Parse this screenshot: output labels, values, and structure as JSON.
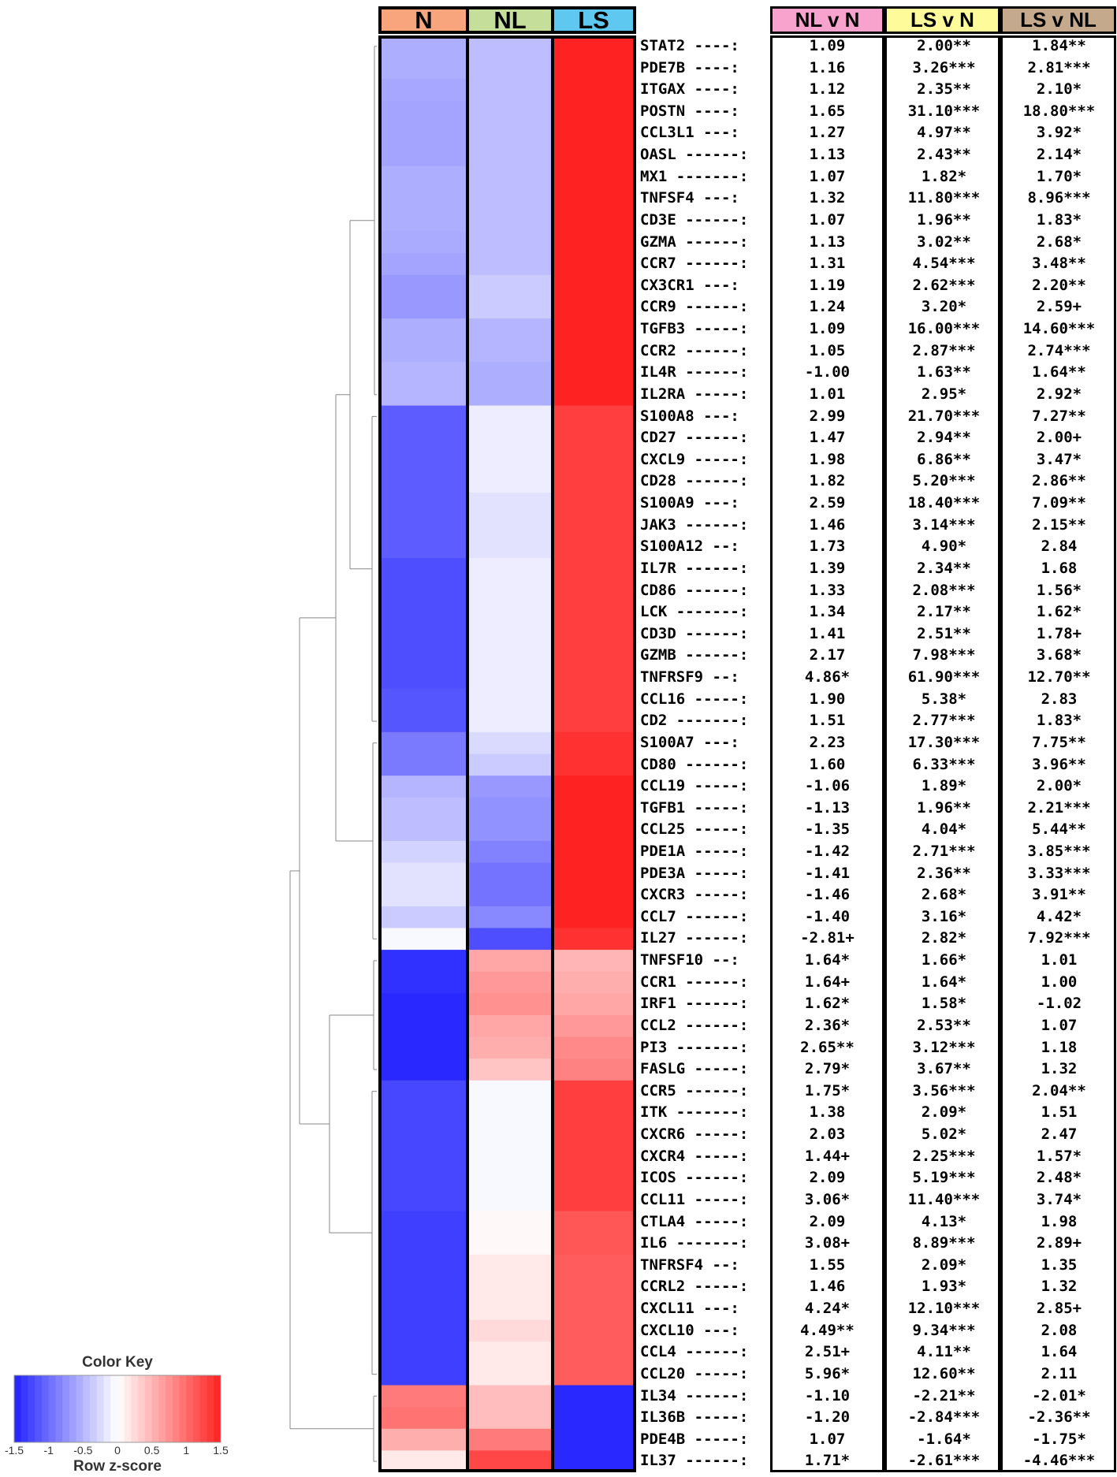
{
  "chart_data": {
    "type": "heatmap",
    "title": "",
    "columns": [
      "N",
      "NL",
      "LS"
    ],
    "column_colors": [
      "#f8a47c",
      "#c5df9a",
      "#5fc8f0"
    ],
    "comparison_headers": [
      "NL v N",
      "LS v N",
      "LS v NL"
    ],
    "comparison_colors": [
      "#f7a3cd",
      "#fefc9a",
      "#c4a98c"
    ],
    "value_range": [
      -1.5,
      1.5
    ],
    "colormap": {
      "low": "#2222ff",
      "mid": "#ffffff",
      "high": "#ff2222"
    },
    "color_key": {
      "title": "Color Key",
      "label": "Row z-score",
      "ticks": [
        "-1.5",
        "-1",
        "-0.5",
        "0",
        "0.5",
        "1",
        "1.5"
      ]
    },
    "rows": [
      {
        "gene": "STAT2 ----:",
        "z": [
          -0.55,
          -0.45,
          1.5
        ],
        "nl_v_n": "1.09",
        "ls_v_n": "2.00**",
        "ls_v_nl": "1.84**"
      },
      {
        "gene": "PDE7B ----:",
        "z": [
          -0.55,
          -0.45,
          1.5
        ],
        "nl_v_n": "1.16",
        "ls_v_n": "3.26***",
        "ls_v_nl": "2.81***"
      },
      {
        "gene": "ITGAX ----:",
        "z": [
          -0.6,
          -0.45,
          1.5
        ],
        "nl_v_n": "1.12",
        "ls_v_n": "2.35**",
        "ls_v_nl": "2.10*"
      },
      {
        "gene": "POSTN ----:",
        "z": [
          -0.62,
          -0.45,
          1.5
        ],
        "nl_v_n": "1.65",
        "ls_v_n": "31.10***",
        "ls_v_nl": "18.80***"
      },
      {
        "gene": "CCL3L1 ---:",
        "z": [
          -0.62,
          -0.45,
          1.5
        ],
        "nl_v_n": "1.27",
        "ls_v_n": "4.97**",
        "ls_v_nl": "3.92*"
      },
      {
        "gene": "OASL ------:",
        "z": [
          -0.62,
          -0.45,
          1.5
        ],
        "nl_v_n": "1.13",
        "ls_v_n": "2.43**",
        "ls_v_nl": "2.14*"
      },
      {
        "gene": "MX1 -------:",
        "z": [
          -0.55,
          -0.45,
          1.5
        ],
        "nl_v_n": "1.07",
        "ls_v_n": "1.82*",
        "ls_v_nl": "1.70*"
      },
      {
        "gene": "TNFSF4 ---:",
        "z": [
          -0.55,
          -0.45,
          1.5
        ],
        "nl_v_n": "1.32",
        "ls_v_n": "11.80***",
        "ls_v_nl": "8.96***"
      },
      {
        "gene": "CD3E ------:",
        "z": [
          -0.55,
          -0.45,
          1.5
        ],
        "nl_v_n": "1.07",
        "ls_v_n": "1.96**",
        "ls_v_nl": "1.83*"
      },
      {
        "gene": "GZMA ------:",
        "z": [
          -0.58,
          -0.45,
          1.5
        ],
        "nl_v_n": "1.13",
        "ls_v_n": "3.02**",
        "ls_v_nl": "2.68*"
      },
      {
        "gene": "CCR7 ------:",
        "z": [
          -0.62,
          -0.45,
          1.5
        ],
        "nl_v_n": "1.31",
        "ls_v_n": "4.54***",
        "ls_v_nl": "3.48**"
      },
      {
        "gene": "CX3CR1 ---:",
        "z": [
          -0.7,
          -0.35,
          1.5
        ],
        "nl_v_n": "1.19",
        "ls_v_n": "2.62***",
        "ls_v_nl": "2.20**"
      },
      {
        "gene": "CCR9 ------:",
        "z": [
          -0.7,
          -0.35,
          1.5
        ],
        "nl_v_n": "1.24",
        "ls_v_n": "3.20*",
        "ls_v_nl": "2.59+"
      },
      {
        "gene": "TGFB3 -----:",
        "z": [
          -0.55,
          -0.5,
          1.5
        ],
        "nl_v_n": "1.09",
        "ls_v_n": "16.00***",
        "ls_v_nl": "14.60***"
      },
      {
        "gene": "CCR2 ------:",
        "z": [
          -0.55,
          -0.5,
          1.5
        ],
        "nl_v_n": "1.05",
        "ls_v_n": "2.87***",
        "ls_v_nl": "2.74***"
      },
      {
        "gene": "IL4R ------:",
        "z": [
          -0.5,
          -0.55,
          1.5
        ],
        "nl_v_n": "-1.00",
        "ls_v_n": "1.63**",
        "ls_v_nl": "1.64**"
      },
      {
        "gene": "IL2RA -----:",
        "z": [
          -0.5,
          -0.55,
          1.5
        ],
        "nl_v_n": "1.01",
        "ls_v_n": "2.95*",
        "ls_v_nl": "2.92*"
      },
      {
        "gene": "S100A8 ---:",
        "z": [
          -1.1,
          -0.12,
          1.3
        ],
        "nl_v_n": "2.99",
        "ls_v_n": "21.70***",
        "ls_v_nl": "7.27**"
      },
      {
        "gene": "CD27 ------:",
        "z": [
          -1.1,
          -0.12,
          1.3
        ],
        "nl_v_n": "1.47",
        "ls_v_n": "2.94**",
        "ls_v_nl": "2.00+"
      },
      {
        "gene": "CXCL9 -----:",
        "z": [
          -1.1,
          -0.12,
          1.3
        ],
        "nl_v_n": "1.98",
        "ls_v_n": "6.86**",
        "ls_v_nl": "3.47*"
      },
      {
        "gene": "CD28 ------:",
        "z": [
          -1.1,
          -0.12,
          1.3
        ],
        "nl_v_n": "1.82",
        "ls_v_n": "5.20***",
        "ls_v_nl": "2.86**"
      },
      {
        "gene": "S100A9 ---:",
        "z": [
          -1.1,
          -0.2,
          1.3
        ],
        "nl_v_n": "2.59",
        "ls_v_n": "18.40***",
        "ls_v_nl": "7.09**"
      },
      {
        "gene": "JAK3 ------:",
        "z": [
          -1.1,
          -0.2,
          1.3
        ],
        "nl_v_n": "1.46",
        "ls_v_n": "3.14***",
        "ls_v_nl": "2.15**"
      },
      {
        "gene": "S100A12 --:",
        "z": [
          -1.1,
          -0.2,
          1.3
        ],
        "nl_v_n": "1.73",
        "ls_v_n": "4.90*",
        "ls_v_nl": "2.84"
      },
      {
        "gene": "IL7R ------:",
        "z": [
          -1.2,
          -0.12,
          1.3
        ],
        "nl_v_n": "1.39",
        "ls_v_n": "2.34**",
        "ls_v_nl": "1.68"
      },
      {
        "gene": "CD86 ------:",
        "z": [
          -1.2,
          -0.12,
          1.3
        ],
        "nl_v_n": "1.33",
        "ls_v_n": "2.08***",
        "ls_v_nl": "1.56*"
      },
      {
        "gene": "LCK -------:",
        "z": [
          -1.2,
          -0.12,
          1.3
        ],
        "nl_v_n": "1.34",
        "ls_v_n": "2.17**",
        "ls_v_nl": "1.62*"
      },
      {
        "gene": "CD3D ------:",
        "z": [
          -1.2,
          -0.12,
          1.3
        ],
        "nl_v_n": "1.41",
        "ls_v_n": "2.51**",
        "ls_v_nl": "1.78+"
      },
      {
        "gene": "GZMB ------:",
        "z": [
          -1.2,
          -0.12,
          1.3
        ],
        "nl_v_n": "2.17",
        "ls_v_n": "7.98***",
        "ls_v_nl": "3.68*"
      },
      {
        "gene": "TNFRSF9 --:",
        "z": [
          -1.2,
          -0.12,
          1.3
        ],
        "nl_v_n": "4.86*",
        "ls_v_n": "61.90***",
        "ls_v_nl": "12.70**"
      },
      {
        "gene": "CCL16 -----:",
        "z": [
          -1.15,
          -0.12,
          1.3
        ],
        "nl_v_n": "1.90",
        "ls_v_n": "5.38*",
        "ls_v_nl": "2.83"
      },
      {
        "gene": "CD2 -------:",
        "z": [
          -1.15,
          -0.12,
          1.3
        ],
        "nl_v_n": "1.51",
        "ls_v_n": "2.77***",
        "ls_v_nl": "1.83*"
      },
      {
        "gene": "S100A7 ---:",
        "z": [
          -0.9,
          -0.25,
          1.4
        ],
        "nl_v_n": "2.23",
        "ls_v_n": "17.30***",
        "ls_v_nl": "7.75**"
      },
      {
        "gene": "CD80 ------:",
        "z": [
          -0.9,
          -0.35,
          1.4
        ],
        "nl_v_n": "1.60",
        "ls_v_n": "6.33***",
        "ls_v_nl": "3.96**"
      },
      {
        "gene": "CCL19 -----:",
        "z": [
          -0.5,
          -0.7,
          1.5
        ],
        "nl_v_n": "-1.06",
        "ls_v_n": "1.89*",
        "ls_v_nl": "2.00*"
      },
      {
        "gene": "TGFB1 -----:",
        "z": [
          -0.45,
          -0.75,
          1.5
        ],
        "nl_v_n": "-1.13",
        "ls_v_n": "1.96**",
        "ls_v_nl": "2.21***"
      },
      {
        "gene": "CCL25 -----:",
        "z": [
          -0.45,
          -0.75,
          1.5
        ],
        "nl_v_n": "-1.35",
        "ls_v_n": "4.04*",
        "ls_v_nl": "5.44**"
      },
      {
        "gene": "PDE1A -----:",
        "z": [
          -0.3,
          -0.85,
          1.5
        ],
        "nl_v_n": "-1.42",
        "ls_v_n": "2.71***",
        "ls_v_nl": "3.85***"
      },
      {
        "gene": "PDE3A -----:",
        "z": [
          -0.2,
          -0.95,
          1.5
        ],
        "nl_v_n": "-1.41",
        "ls_v_n": "2.36**",
        "ls_v_nl": "3.33***"
      },
      {
        "gene": "CXCR3 -----:",
        "z": [
          -0.2,
          -0.95,
          1.5
        ],
        "nl_v_n": "-1.46",
        "ls_v_n": "2.68*",
        "ls_v_nl": "3.91**"
      },
      {
        "gene": "CCL7 ------:",
        "z": [
          -0.35,
          -0.8,
          1.5
        ],
        "nl_v_n": "-1.40",
        "ls_v_n": "3.16*",
        "ls_v_nl": "4.42*"
      },
      {
        "gene": "IL27 ------:",
        "z": [
          -0.05,
          -1.2,
          1.4
        ],
        "nl_v_n": "-2.81+",
        "ls_v_n": "2.82*",
        "ls_v_nl": "7.92***"
      },
      {
        "gene": "TNFSF10 --:",
        "z": [
          -1.4,
          0.6,
          0.5
        ],
        "nl_v_n": "1.64*",
        "ls_v_n": "1.66*",
        "ls_v_nl": "1.01"
      },
      {
        "gene": "CCR1 ------:",
        "z": [
          -1.4,
          0.7,
          0.55
        ],
        "nl_v_n": "1.64+",
        "ls_v_n": "1.64*",
        "ls_v_nl": "1.00"
      },
      {
        "gene": "IRF1 ------:",
        "z": [
          -1.45,
          0.75,
          0.6
        ],
        "nl_v_n": "1.62*",
        "ls_v_n": "1.58*",
        "ls_v_nl": "-1.02"
      },
      {
        "gene": "CCL2 ------:",
        "z": [
          -1.45,
          0.6,
          0.7
        ],
        "nl_v_n": "2.36*",
        "ls_v_n": "2.53**",
        "ls_v_nl": "1.07"
      },
      {
        "gene": "PI3 -------:",
        "z": [
          -1.45,
          0.55,
          0.8
        ],
        "nl_v_n": "2.65**",
        "ls_v_n": "3.12***",
        "ls_v_nl": "1.18"
      },
      {
        "gene": "FASLG -----:",
        "z": [
          -1.45,
          0.4,
          0.85
        ],
        "nl_v_n": "2.79*",
        "ls_v_n": "3.67**",
        "ls_v_nl": "1.32"
      },
      {
        "gene": "CCR5 ------:",
        "z": [
          -1.25,
          -0.05,
          1.3
        ],
        "nl_v_n": "1.75*",
        "ls_v_n": "3.56***",
        "ls_v_nl": "2.04**"
      },
      {
        "gene": "ITK -------:",
        "z": [
          -1.25,
          -0.05,
          1.3
        ],
        "nl_v_n": "1.38",
        "ls_v_n": "2.09*",
        "ls_v_nl": "1.51"
      },
      {
        "gene": "CXCR6 -----:",
        "z": [
          -1.25,
          -0.05,
          1.3
        ],
        "nl_v_n": "2.03",
        "ls_v_n": "5.02*",
        "ls_v_nl": "2.47"
      },
      {
        "gene": "CXCR4 -----:",
        "z": [
          -1.25,
          -0.05,
          1.3
        ],
        "nl_v_n": "1.44+",
        "ls_v_n": "2.25***",
        "ls_v_nl": "1.57*"
      },
      {
        "gene": "ICOS ------:",
        "z": [
          -1.25,
          -0.05,
          1.3
        ],
        "nl_v_n": "2.09",
        "ls_v_n": "5.19***",
        "ls_v_nl": "2.48*"
      },
      {
        "gene": "CCL11 -----:",
        "z": [
          -1.25,
          -0.05,
          1.3
        ],
        "nl_v_n": "3.06*",
        "ls_v_n": "11.40***",
        "ls_v_nl": "3.74*"
      },
      {
        "gene": "CTLA4 -----:",
        "z": [
          -1.3,
          0.05,
          1.15
        ],
        "nl_v_n": "2.09",
        "ls_v_n": "4.13*",
        "ls_v_nl": "1.98"
      },
      {
        "gene": "IL6 -------:",
        "z": [
          -1.3,
          0.05,
          1.15
        ],
        "nl_v_n": "3.08+",
        "ls_v_n": "8.89***",
        "ls_v_nl": "2.89+"
      },
      {
        "gene": "TNFRSF4 --:",
        "z": [
          -1.3,
          0.15,
          1.1
        ],
        "nl_v_n": "1.55",
        "ls_v_n": "2.09*",
        "ls_v_nl": "1.35"
      },
      {
        "gene": "CCRL2 -----:",
        "z": [
          -1.3,
          0.15,
          1.1
        ],
        "nl_v_n": "1.46",
        "ls_v_n": "1.93*",
        "ls_v_nl": "1.32"
      },
      {
        "gene": "CXCL11 ---:",
        "z": [
          -1.3,
          0.15,
          1.1
        ],
        "nl_v_n": "4.24*",
        "ls_v_n": "12.10***",
        "ls_v_nl": "2.85+"
      },
      {
        "gene": "CXCL10 ---:",
        "z": [
          -1.3,
          0.25,
          1.1
        ],
        "nl_v_n": "4.49**",
        "ls_v_n": "9.34***",
        "ls_v_nl": "2.08"
      },
      {
        "gene": "CCL4 ------:",
        "z": [
          -1.3,
          0.15,
          1.1
        ],
        "nl_v_n": "2.51+",
        "ls_v_n": "4.11**",
        "ls_v_nl": "1.64"
      },
      {
        "gene": "CCL20 -----:",
        "z": [
          -1.3,
          0.15,
          1.1
        ],
        "nl_v_n": "5.96*",
        "ls_v_n": "12.60**",
        "ls_v_nl": "2.11"
      },
      {
        "gene": "IL34 ------:",
        "z": [
          0.9,
          0.45,
          -1.45
        ],
        "nl_v_n": "-1.10",
        "ls_v_n": "-2.21**",
        "ls_v_nl": "-2.01*"
      },
      {
        "gene": "IL36B -----:",
        "z": [
          0.95,
          0.45,
          -1.45
        ],
        "nl_v_n": "-1.20",
        "ls_v_n": "-2.84***",
        "ls_v_nl": "-2.36**"
      },
      {
        "gene": "PDE4B -----:",
        "z": [
          0.55,
          0.9,
          -1.45
        ],
        "nl_v_n": "1.07",
        "ls_v_n": "-1.64*",
        "ls_v_nl": "-1.75*"
      },
      {
        "gene": "IL37 ------:",
        "z": [
          0.15,
          1.25,
          -1.45
        ],
        "nl_v_n": "1.71*",
        "ls_v_n": "-2.61***",
        "ls_v_nl": "-4.46***"
      }
    ]
  }
}
